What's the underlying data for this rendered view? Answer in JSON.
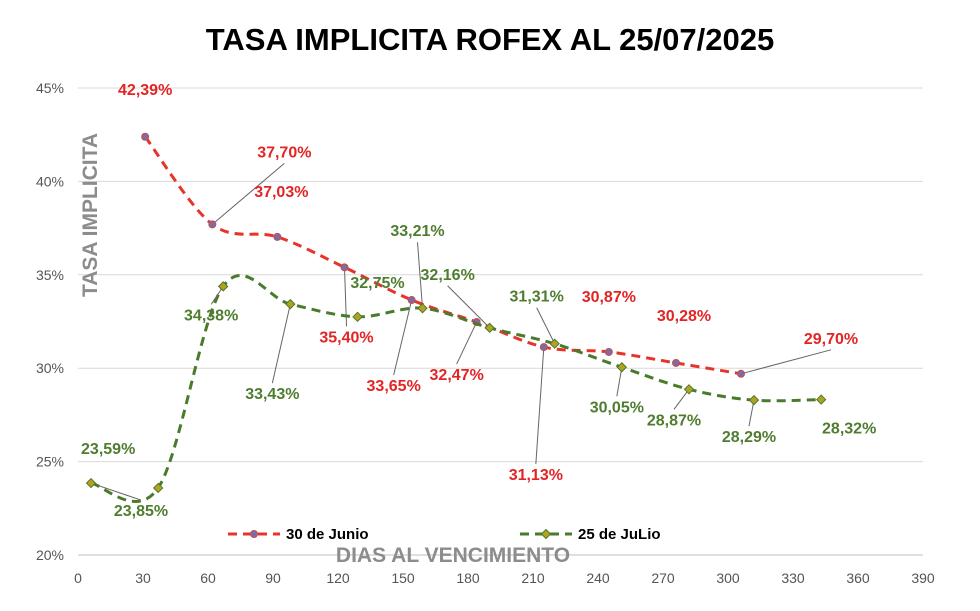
{
  "chart_data": {
    "type": "line",
    "title": "TASA IMPLICITA ROFEX AL 25/07/2025",
    "xlabel": "DIAS AL VENCIMIENTO",
    "ylabel": "TASA IMPLICITA",
    "xlim": [
      0,
      390
    ],
    "ylim": [
      20,
      45
    ],
    "x_ticks": [
      "0",
      "30",
      "60",
      "90",
      "120",
      "150",
      "180",
      "210",
      "240",
      "270",
      "300",
      "330",
      "360",
      "390"
    ],
    "y_ticks": [
      "20%",
      "25%",
      "30%",
      "35%",
      "40%",
      "45%"
    ],
    "grid": "horizontal",
    "legend_position": "bottom",
    "series": [
      {
        "name": "30 de Junio",
        "color": "#e8332a",
        "label_color": "#e32424",
        "marker_fill": "#7e6aa8",
        "line_style": "dashed-smooth",
        "x": [
          31,
          62,
          92,
          123,
          154,
          184,
          215,
          245,
          276,
          306
        ],
        "y": [
          42.39,
          37.7,
          37.03,
          35.4,
          33.65,
          32.47,
          31.13,
          30.87,
          30.28,
          29.7
        ],
        "labels": [
          "42,39%",
          "37,70%",
          "37,03%",
          "35,40%",
          "33,65%",
          "32,47%",
          "31,13%",
          "30,87%",
          "30,28%",
          "29,70%"
        ]
      },
      {
        "name": "25 de JuLio",
        "color": "#4a7a2c",
        "label_color": "#4f7d30",
        "marker_fill": "#b3a21f",
        "line_style": "dashed-smooth",
        "x": [
          6,
          37,
          67,
          98,
          129,
          159,
          190,
          220,
          251,
          282,
          312,
          343
        ],
        "y": [
          23.85,
          23.59,
          34.38,
          33.43,
          32.75,
          33.21,
          32.16,
          31.31,
          30.05,
          28.87,
          28.29,
          28.32
        ],
        "labels": [
          "23,85%",
          "23,59%",
          "34,38%",
          "33,43%",
          "32,75%",
          "33,21%",
          "32,16%",
          "31,31%",
          "30,05%",
          "28,87%",
          "28,29%",
          "28,32%"
        ]
      }
    ]
  }
}
